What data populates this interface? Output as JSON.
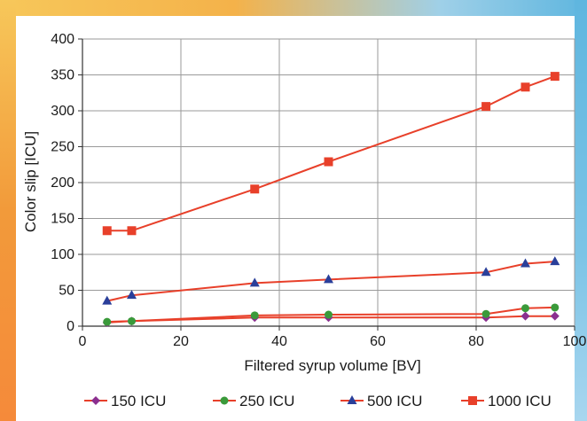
{
  "chart_data": {
    "type": "line",
    "xlabel": "Filtered syrup volume  [BV]",
    "ylabel": "Color slip  [ICU]",
    "xlim": [
      0,
      100
    ],
    "ylim": [
      0,
      400
    ],
    "xticks": [
      "0",
      "20",
      "40",
      "60",
      "80",
      "100"
    ],
    "yticks": [
      "0",
      "50",
      "100",
      "150",
      "200",
      "250",
      "300",
      "350",
      "400"
    ],
    "grid": true,
    "legend_position": "bottom",
    "x": [
      5,
      10,
      35,
      50,
      82,
      90,
      96
    ],
    "series": [
      {
        "name": "150 ICU",
        "marker": "diamond",
        "color": "#8b2f8f",
        "values": [
          5,
          7,
          12,
          12,
          12,
          14,
          14
        ]
      },
      {
        "name": "250 ICU",
        "marker": "circle",
        "color": "#3a9a3a",
        "values": [
          6,
          7,
          15,
          16,
          17,
          25,
          26
        ]
      },
      {
        "name": "500 ICU",
        "marker": "triangle",
        "color": "#2a3f9a",
        "values": [
          35,
          43,
          60,
          65,
          75,
          87,
          90
        ]
      },
      {
        "name": "1000 ICU",
        "marker": "square",
        "color": "#e8402a",
        "values": [
          133,
          133,
          191,
          229,
          306,
          333,
          348
        ]
      }
    ],
    "line_color": "#e8402a"
  }
}
